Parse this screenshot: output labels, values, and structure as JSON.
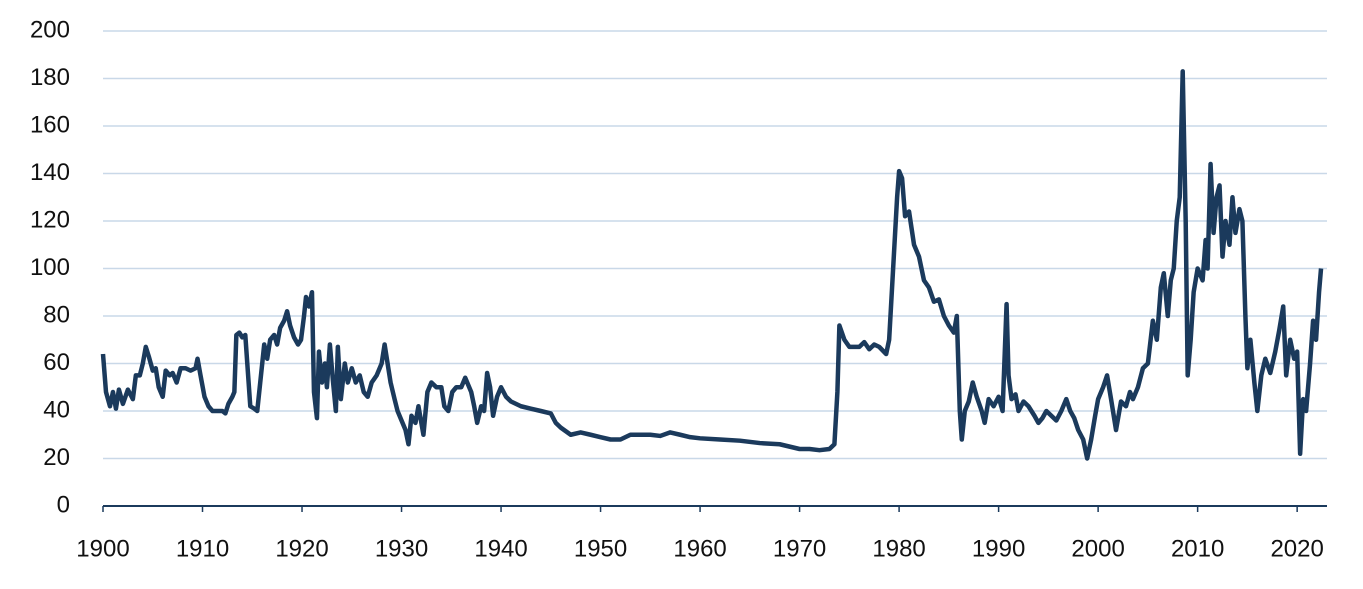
{
  "chart_data": {
    "type": "line",
    "color": "#1b3a5c",
    "grid": true,
    "grid_color": "#c9d8e8",
    "xlim": [
      1900,
      2023
    ],
    "ylim": [
      0,
      200
    ],
    "xticks": [
      1900,
      1910,
      1920,
      1930,
      1940,
      1950,
      1960,
      1970,
      1980,
      1990,
      2000,
      2010,
      2020
    ],
    "yticks": [
      0,
      20,
      40,
      60,
      80,
      100,
      120,
      140,
      160,
      180,
      200
    ],
    "x": [
      1900,
      1900.3,
      1900.7,
      1901,
      1901.3,
      1901.6,
      1902,
      1902.5,
      1903,
      1903.3,
      1903.7,
      1904,
      1904.3,
      1904.6,
      1905,
      1905.3,
      1905.6,
      1906,
      1906.3,
      1906.7,
      1907,
      1907.4,
      1907.8,
      1908.3,
      1908.8,
      1909.3,
      1909.5,
      1909.8,
      1910.2,
      1910.6,
      1911,
      1911.5,
      1912,
      1912.3,
      1912.6,
      1913,
      1913.2,
      1913.4,
      1913.7,
      1914,
      1914.3,
      1914.5,
      1914.8,
      1915.2,
      1915.5,
      1915.8,
      1916.2,
      1916.5,
      1916.8,
      1917.2,
      1917.5,
      1917.8,
      1918.2,
      1918.5,
      1918.8,
      1919.2,
      1919.6,
      1919.9,
      1920.2,
      1920.4,
      1920.7,
      1921,
      1921.2,
      1921.5,
      1921.7,
      1922,
      1922.3,
      1922.5,
      1922.8,
      1923.1,
      1923.4,
      1923.6,
      1923.9,
      1924.3,
      1924.6,
      1925,
      1925.4,
      1925.8,
      1926.2,
      1926.6,
      1927,
      1927.5,
      1928,
      1928.3,
      1928.6,
      1928.9,
      1929.3,
      1929.6,
      1930,
      1930.4,
      1930.7,
      1931,
      1931.4,
      1931.7,
      1932.2,
      1932.6,
      1933,
      1933.5,
      1934,
      1934.3,
      1934.7,
      1935.1,
      1935.5,
      1936,
      1936.4,
      1936.7,
      1937,
      1937.3,
      1937.6,
      1938,
      1938.3,
      1938.6,
      1938.9,
      1939.2,
      1939.6,
      1940,
      1940.5,
      1941,
      1942,
      1943,
      1944,
      1945,
      1945.5,
      1946,
      1947,
      1948,
      1949,
      1950,
      1951,
      1952,
      1953,
      1955,
      1956,
      1957,
      1958,
      1959,
      1960,
      1962,
      1964,
      1966,
      1968,
      1970,
      1971,
      1972,
      1973,
      1973.5,
      1973.8,
      1974,
      1974.5,
      1975,
      1976,
      1976.5,
      1977,
      1977.5,
      1978,
      1978.7,
      1979,
      1979.4,
      1979.8,
      1980,
      1980.3,
      1980.6,
      1981,
      1981.5,
      1982,
      1982.5,
      1983,
      1983.5,
      1984,
      1984.5,
      1985,
      1985.5,
      1985.8,
      1986.1,
      1986.3,
      1986.6,
      1987,
      1987.4,
      1987.8,
      1988.3,
      1988.6,
      1989,
      1989.5,
      1990,
      1990.4,
      1990.8,
      1991,
      1991.3,
      1991.7,
      1992,
      1992.5,
      1993,
      1993.6,
      1994,
      1994.4,
      1994.8,
      1995.3,
      1995.8,
      1996.3,
      1996.8,
      1997.2,
      1997.6,
      1998,
      1998.5,
      1998.9,
      1999.3,
      1999.7,
      2000,
      2000.5,
      2000.9,
      2001.3,
      2001.8,
      2002.3,
      2002.8,
      2003.2,
      2003.5,
      2004,
      2004.5,
      2005,
      2005.5,
      2005.9,
      2006.3,
      2006.6,
      2007,
      2007.3,
      2007.6,
      2007.9,
      2008.2,
      2008.5,
      2008.8,
      2009,
      2009.3,
      2009.6,
      2010,
      2010.5,
      2010.8,
      2011,
      2011.3,
      2011.6,
      2011.9,
      2012.2,
      2012.5,
      2012.8,
      2013.2,
      2013.5,
      2013.8,
      2014.2,
      2014.5,
      2014.8,
      2015,
      2015.3,
      2015.7,
      2016,
      2016.4,
      2016.8,
      2017.3,
      2017.8,
      2018.2,
      2018.6,
      2018.9,
      2019.3,
      2019.7,
      2020,
      2020.3,
      2020.6,
      2020.9,
      2021.3,
      2021.6,
      2021.9,
      2022.2,
      2022.4
    ],
    "values": [
      64,
      48,
      42,
      48,
      41,
      49,
      43,
      49,
      45,
      55,
      55,
      60,
      67,
      63,
      57,
      58,
      50,
      46,
      57,
      55,
      56,
      52,
      58,
      58,
      57,
      58,
      62,
      55,
      46,
      42,
      40,
      40,
      40,
      39,
      43,
      46,
      48,
      72,
      73,
      71,
      72,
      60,
      42,
      41,
      40,
      52,
      68,
      62,
      70,
      72,
      68,
      75,
      78,
      82,
      76,
      71,
      68,
      70,
      80,
      88,
      84,
      90,
      48,
      37,
      65,
      52,
      60,
      50,
      68,
      53,
      40,
      67,
      45,
      60,
      52,
      58,
      52,
      55,
      48,
      46,
      52,
      55,
      60,
      68,
      60,
      52,
      45,
      40,
      36,
      32,
      26,
      38,
      35,
      42,
      30,
      48,
      52,
      50,
      50,
      42,
      40,
      48,
      50,
      50,
      54,
      51,
      48,
      42,
      35,
      42,
      40,
      56,
      50,
      38,
      46,
      50,
      46,
      44,
      42,
      41,
      40,
      39,
      35,
      33,
      30,
      31,
      30,
      29,
      28,
      28,
      30,
      30,
      29.5,
      31,
      30,
      29,
      28.5,
      28,
      27.5,
      26.5,
      26,
      24,
      24,
      23.5,
      24,
      26,
      48,
      76,
      70,
      67,
      67,
      69,
      66,
      68,
      67,
      64,
      70,
      100,
      130,
      141,
      138,
      122,
      124,
      110,
      105,
      95,
      92,
      86,
      87,
      80,
      76,
      73,
      80,
      40,
      28,
      40,
      44,
      52,
      46,
      40,
      35,
      45,
      42,
      46,
      40,
      85,
      55,
      45,
      47,
      40,
      44,
      42,
      38,
      35,
      37,
      40,
      38,
      36,
      40,
      45,
      40,
      37,
      32,
      28,
      20,
      28,
      38,
      45,
      50,
      55,
      45,
      32,
      44,
      42,
      48,
      45,
      50,
      58,
      60,
      78,
      70,
      92,
      98,
      80,
      95,
      100,
      120,
      130,
      183,
      120,
      55,
      70,
      90,
      100,
      95,
      112,
      100,
      144,
      115,
      130,
      135,
      105,
      120,
      110,
      130,
      115,
      125,
      120,
      80,
      58,
      70,
      52,
      40,
      55,
      62,
      56,
      65,
      74,
      84,
      55,
      70,
      62,
      65,
      22,
      45,
      40,
      60,
      78,
      70,
      90,
      100
    ]
  }
}
